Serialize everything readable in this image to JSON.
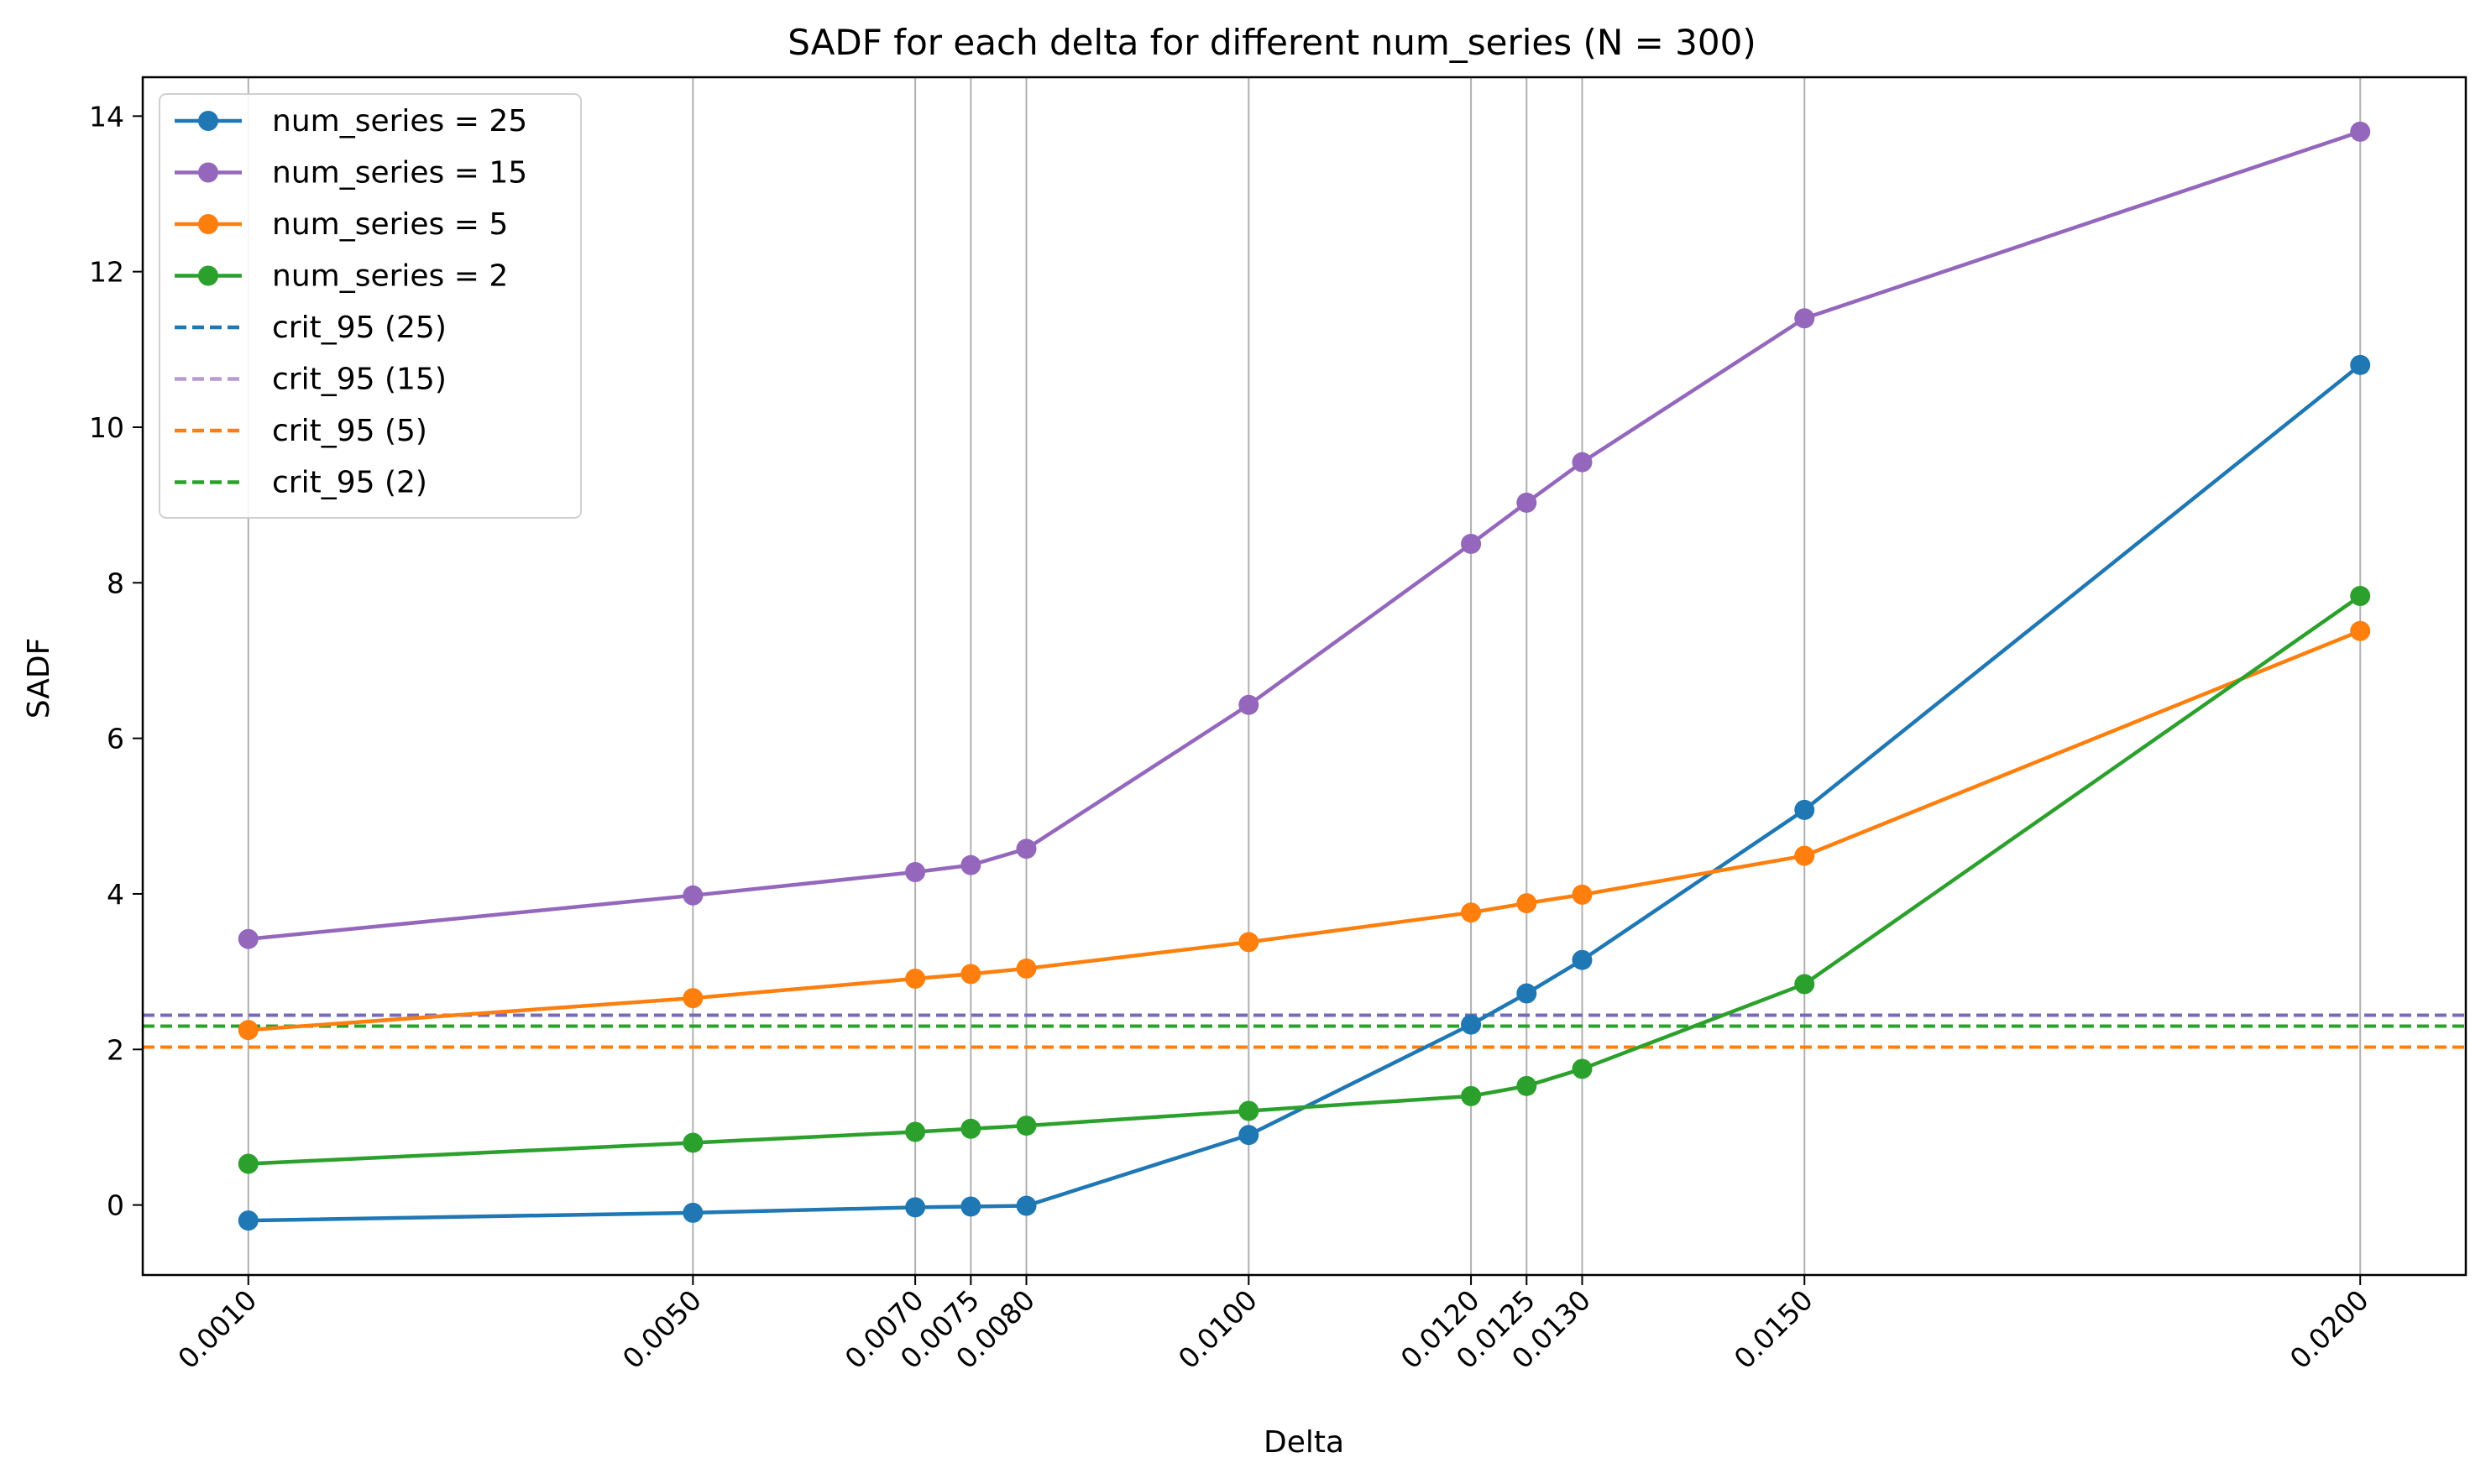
{
  "chart_data": {
    "type": "line",
    "title": "SADF for each delta for different num_series (N = 300)",
    "xlabel": "Delta",
    "ylabel": "SADF",
    "x": [
      0.001,
      0.005,
      0.007,
      0.0075,
      0.008,
      0.01,
      0.012,
      0.0125,
      0.013,
      0.015,
      0.02
    ],
    "x_tick_labels": [
      "0.0010",
      "0.0050",
      "0.0070",
      "0.0075",
      "0.0080",
      "0.0100",
      "0.0120",
      "0.0125",
      "0.0130",
      "0.0150",
      "0.0200"
    ],
    "xlim": [
      5e-05,
      0.02095
    ],
    "ylim": [
      -0.9,
      14.5
    ],
    "y_ticks": [
      0,
      2,
      4,
      6,
      8,
      10,
      12,
      14
    ],
    "grid": "vertical lines at x ticks",
    "legend_position": "upper-left",
    "series": [
      {
        "name": "num_series = 25",
        "color": "#1f77b4",
        "values": [
          -0.2,
          -0.1,
          -0.03,
          -0.02,
          -0.01,
          0.9,
          2.32,
          2.72,
          3.15,
          5.08,
          10.8
        ]
      },
      {
        "name": "num_series = 15",
        "color": "#9467bd",
        "values": [
          3.42,
          3.98,
          4.28,
          4.37,
          4.58,
          6.43,
          8.5,
          9.03,
          9.55,
          11.4,
          13.8
        ]
      },
      {
        "name": "num_series = 5",
        "color": "#ff7f0e",
        "values": [
          2.25,
          2.66,
          2.91,
          2.97,
          3.04,
          3.38,
          3.76,
          3.88,
          3.99,
          4.49,
          7.38
        ]
      },
      {
        "name": "num_series = 2",
        "color": "#2ca02c",
        "values": [
          0.53,
          0.8,
          0.94,
          0.98,
          1.02,
          1.21,
          1.4,
          1.53,
          1.75,
          2.84,
          7.83
        ]
      }
    ],
    "reference_lines": [
      {
        "name": "crit_95 (25)",
        "color": "#1f77b4",
        "value": 2.44
      },
      {
        "name": "crit_95 (15)",
        "color": "#9467bd",
        "value": 2.44
      },
      {
        "name": "crit_95 (5)",
        "color": "#ff7f0e",
        "value": 2.03
      },
      {
        "name": "crit_95 (2)",
        "color": "#2ca02c",
        "value": 2.3
      }
    ]
  }
}
